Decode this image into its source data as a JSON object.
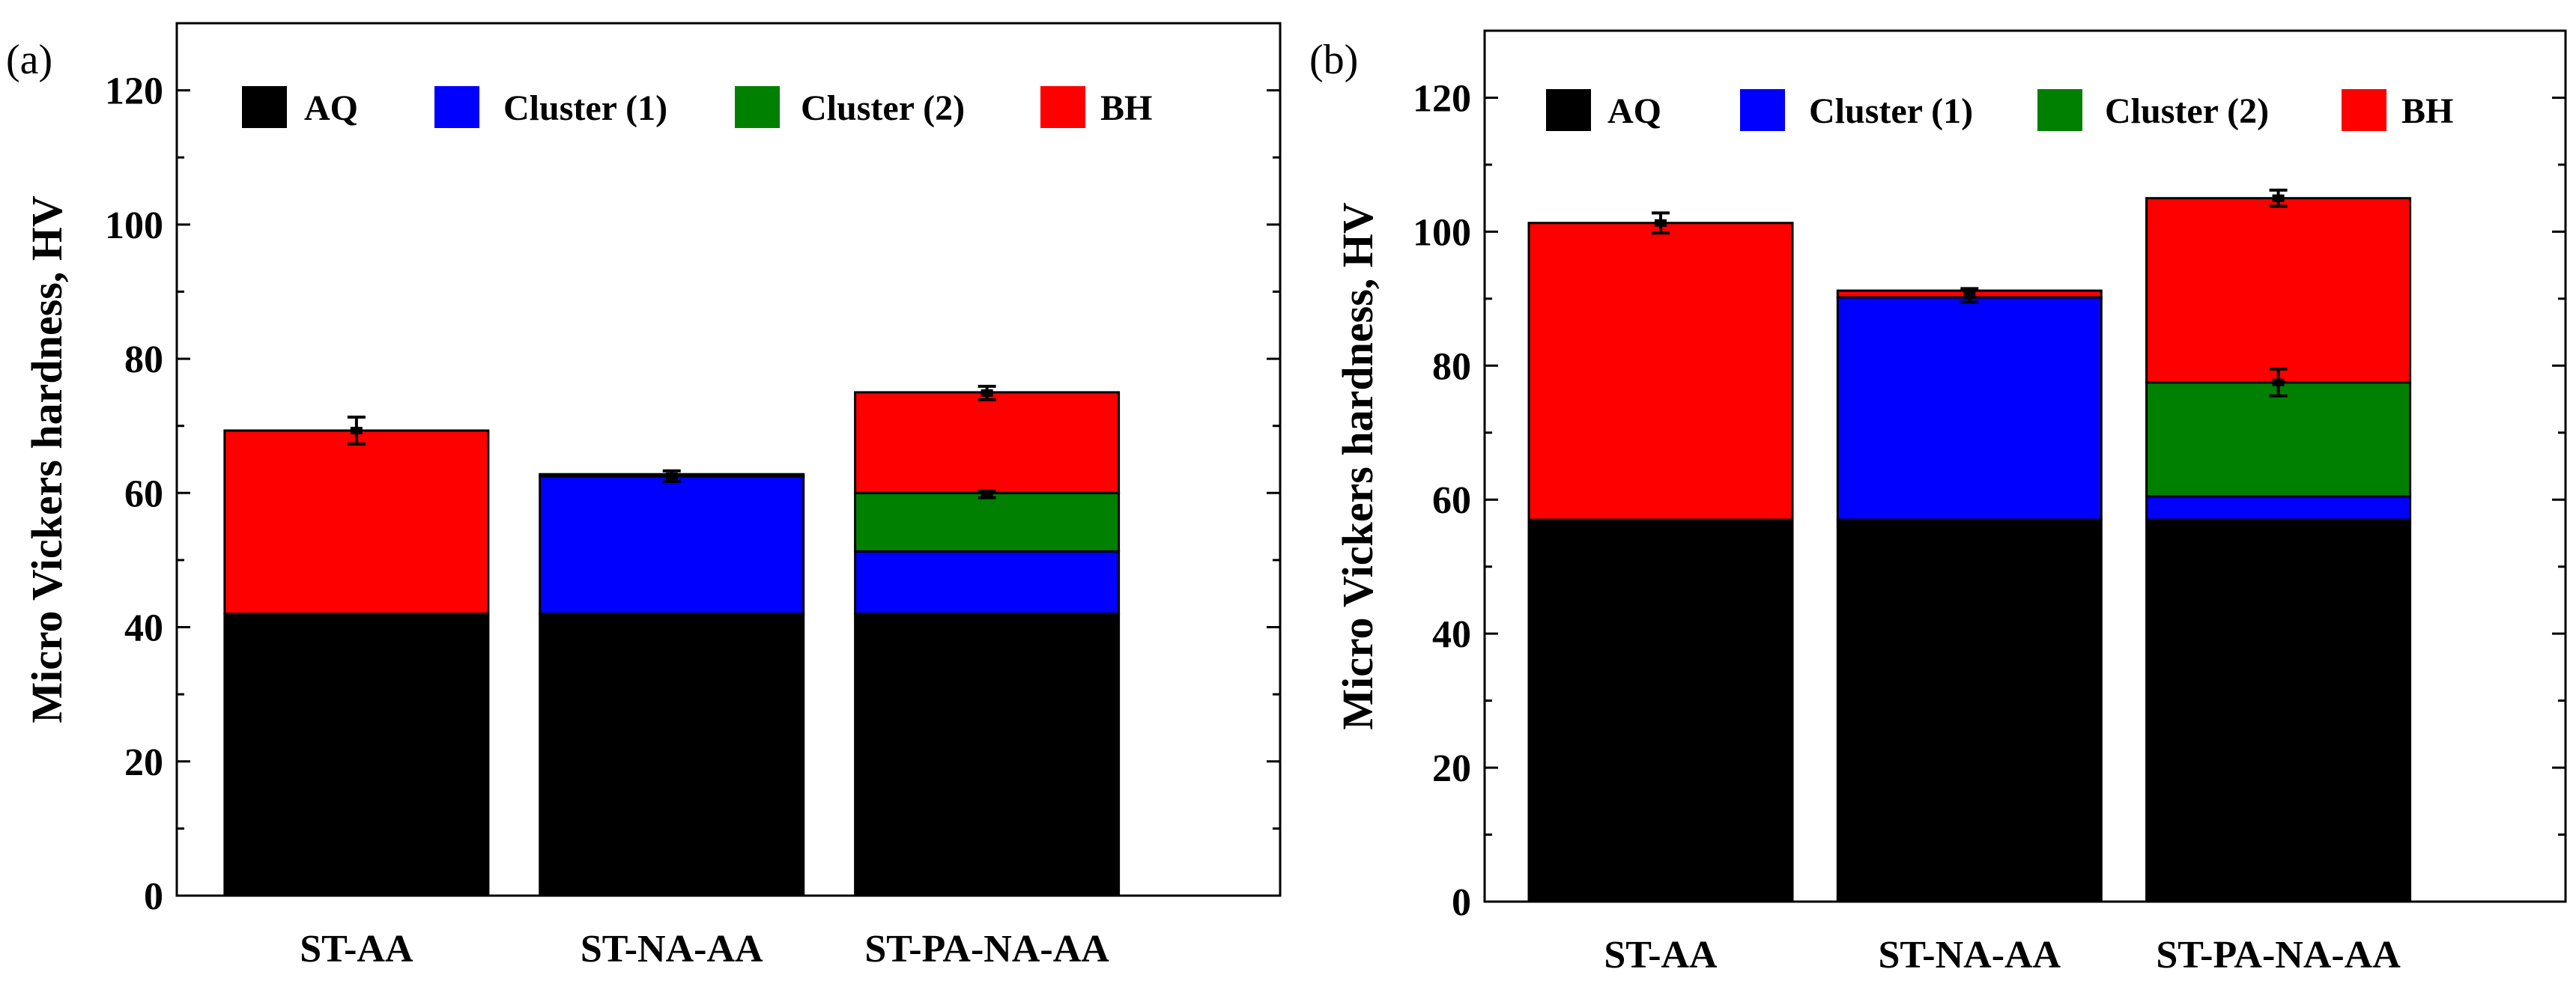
{
  "chart_data": [
    {
      "type": "bar",
      "stacked": true,
      "panel_label": "(a)",
      "ylabel": "Micro Vickers hardness, HV",
      "xlabel": "",
      "ylim": [
        0,
        130
      ],
      "yticks": [
        0,
        20,
        40,
        60,
        80,
        100,
        120
      ],
      "categories": [
        "ST-AA",
        "ST-NA-AA",
        "ST-PA-NA-AA"
      ],
      "legend_position": "top",
      "series": [
        {
          "name": "AQ",
          "color": "#000000",
          "values": [
            42,
            42,
            42
          ]
        },
        {
          "name": "Cluster (1)",
          "color": "#0000ff",
          "values": [
            0,
            20.5,
            9.3
          ]
        },
        {
          "name": "Cluster (2)",
          "color": "#008000",
          "values": [
            0,
            0,
            8.7
          ]
        },
        {
          "name": "BH",
          "color": "#ff0000",
          "values": [
            27.3,
            0.3,
            15
          ]
        }
      ],
      "error_bars": [
        {
          "category": "ST-AA",
          "y": 69.3,
          "err": 2
        },
        {
          "category": "ST-NA-AA",
          "y": 62.5,
          "err": 0.8
        },
        {
          "category": "ST-PA-NA-AA",
          "y": 59.8,
          "err": 0.5
        },
        {
          "category": "ST-PA-NA-AA",
          "y": 74.9,
          "err": 1
        }
      ]
    },
    {
      "type": "bar",
      "stacked": true,
      "panel_label": "(b)",
      "ylabel": "Micro Vickers hardness, HV",
      "xlabel": "",
      "ylim": [
        0,
        130
      ],
      "yticks": [
        0,
        20,
        40,
        60,
        80,
        100,
        120
      ],
      "categories": [
        "ST-AA",
        "ST-NA-AA",
        "ST-PA-NA-AA"
      ],
      "legend_position": "top",
      "series": [
        {
          "name": "AQ",
          "color": "#000000",
          "values": [
            57,
            57,
            57
          ]
        },
        {
          "name": "Cluster (1)",
          "color": "#0000ff",
          "values": [
            0,
            33.2,
            3.5
          ]
        },
        {
          "name": "Cluster (2)",
          "color": "#008000",
          "values": [
            0,
            0,
            17
          ]
        },
        {
          "name": "BH",
          "color": "#ff0000",
          "values": [
            44.3,
            1,
            27.5
          ]
        }
      ],
      "error_bars": [
        {
          "category": "ST-AA",
          "y": 101.3,
          "err": 1.5
        },
        {
          "category": "ST-NA-AA",
          "y": 90.5,
          "err": 1
        },
        {
          "category": "ST-PA-NA-AA",
          "y": 77.5,
          "err": 2
        },
        {
          "category": "ST-PA-NA-AA",
          "y": 105,
          "err": 1.2
        }
      ]
    }
  ]
}
